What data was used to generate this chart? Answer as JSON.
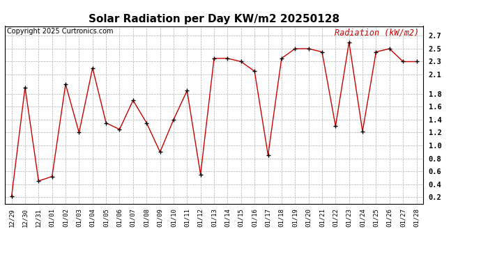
{
  "title": "Solar Radiation per Day KW/m2 20250128",
  "copyright": "Copyright 2025 Curtronics.com",
  "legend_label": "Radiation (kW/m2)",
  "dates": [
    "12/29",
    "12/30",
    "12/31",
    "01/01",
    "01/02",
    "01/03",
    "01/04",
    "01/05",
    "01/06",
    "01/07",
    "01/08",
    "01/09",
    "01/10",
    "01/11",
    "01/12",
    "01/13",
    "01/14",
    "01/15",
    "01/16",
    "01/17",
    "01/18",
    "01/19",
    "01/20",
    "01/21",
    "01/22",
    "01/23",
    "01/24",
    "01/25",
    "01/26",
    "01/27",
    "01/28"
  ],
  "values": [
    0.21,
    1.9,
    0.45,
    0.52,
    1.95,
    1.2,
    2.2,
    1.35,
    1.25,
    1.7,
    1.35,
    0.9,
    1.4,
    1.85,
    0.55,
    2.35,
    2.35,
    2.3,
    2.15,
    0.85,
    2.35,
    2.5,
    2.5,
    2.45,
    1.3,
    2.6,
    1.22,
    2.45,
    2.5,
    2.3,
    2.3
  ],
  "line_color": "#cc0000",
  "marker_color": "#000000",
  "grid_color": "#b0b0b0",
  "background_color": "#ffffff",
  "ylim": [
    0.1,
    2.85
  ],
  "yticks": [
    0.2,
    0.4,
    0.6,
    0.8,
    1.0,
    1.2,
    1.4,
    1.6,
    1.8,
    2.1,
    2.3,
    2.5,
    2.7
  ],
  "title_fontsize": 11,
  "copyright_fontsize": 7,
  "legend_fontsize": 8.5,
  "tick_fontsize": 6.5
}
